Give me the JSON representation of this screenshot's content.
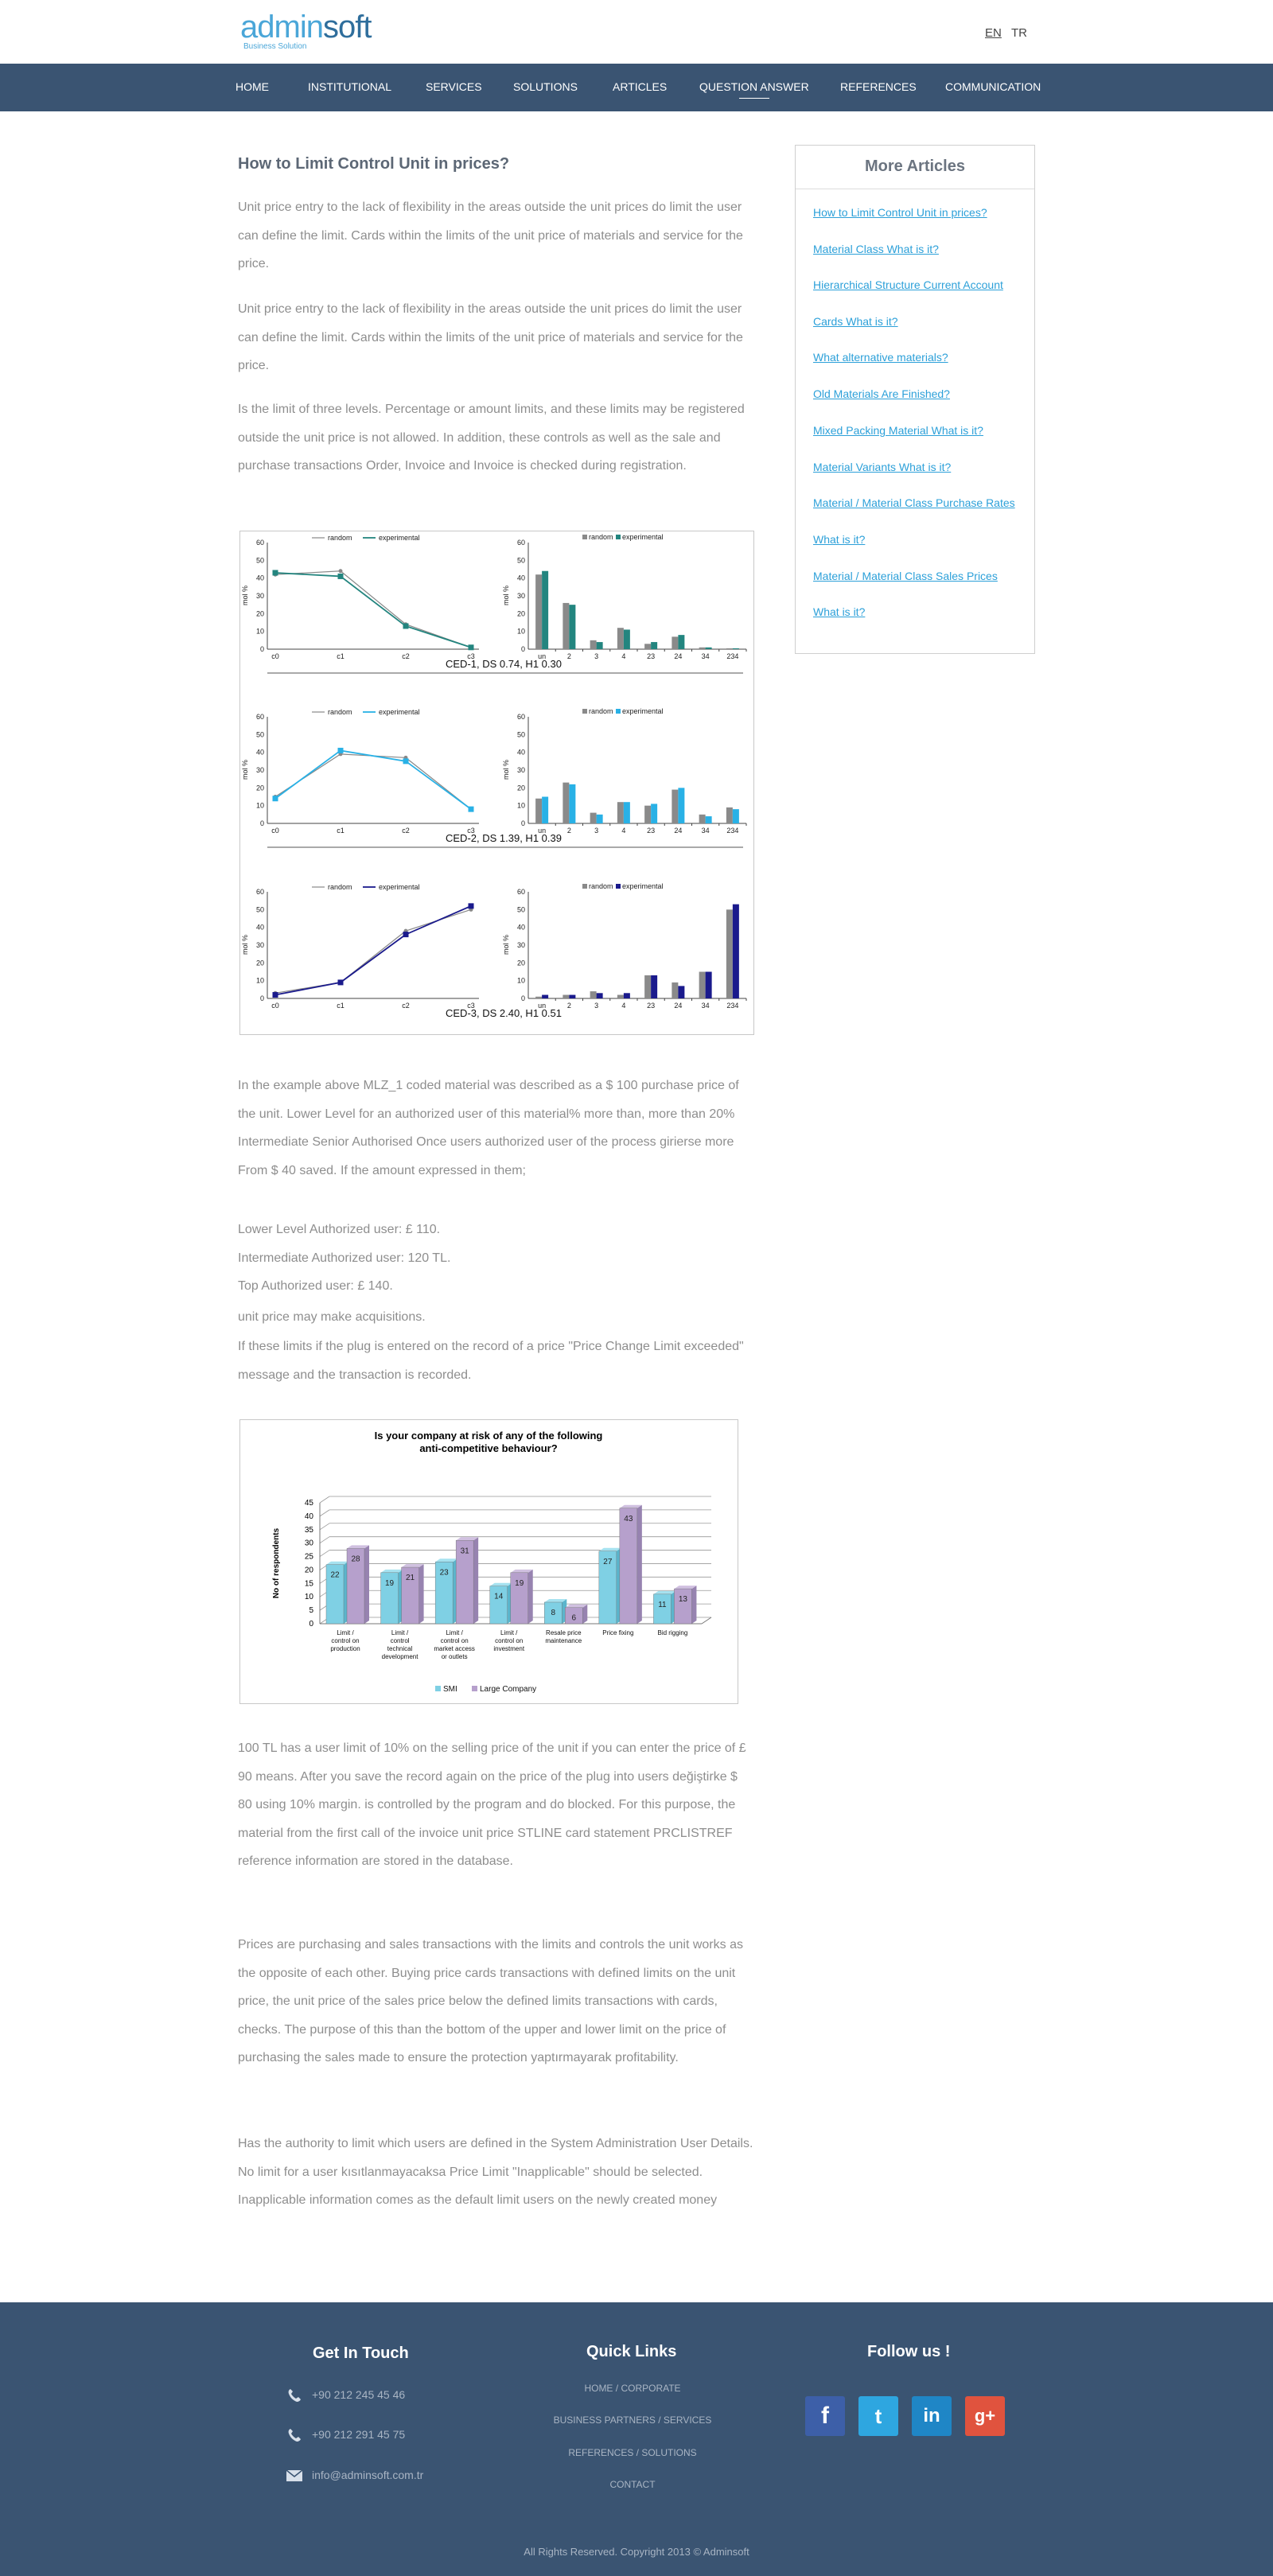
{
  "header": {
    "logo_part1": "admin",
    "logo_part2": "soft",
    "logo_tagline": "Business Solution",
    "lang_en": "EN",
    "lang_tr": "TR"
  },
  "nav": {
    "items": [
      "HOME",
      "INSTITUTIONAL",
      "SERVICES",
      "SOLUTIONS",
      "ARTICLES",
      "QUESTION ANSWER",
      "REFERENCES",
      "COMMUNICATION"
    ],
    "active": "QUESTION ANSWER"
  },
  "article": {
    "title": "How to Limit Control Unit in prices?",
    "p1": "Unit price entry to the lack of flexibility in the areas outside the unit prices do limit the user can define the limit. Cards within the limits of the unit price of materials and service for the price.",
    "p2": "Unit price entry to the lack of flexibility in the areas outside the unit prices do limit the user can define the limit. Cards within the limits of the unit price of materials and service for the price.",
    "p3": "Is the limit of three levels. Percentage or amount limits, and these limits may be registered outside the unit price is not allowed. In addition, these controls as well as the sale and purchase transactions Order, Invoice and Invoice is checked during registration.",
    "p4": "In the example above MLZ_1 coded material was described as a $ 100 purchase price of the unit. Lower Level for an authorized user of this material% more than, more than 20% Intermediate Senior Authorised Once users authorized user of the process girierse more From $ 40 saved. If the amount expressed in them;",
    "l1": "Lower Level Authorized user: £ 110.",
    "l2": "Intermediate Authorized user: 120 TL.",
    "l3": "Top Authorized user: £ 140.",
    "l4": "unit price may make acquisitions.",
    "p5": "If these limits if the plug is entered on the record of a price \"Price Change Limit exceeded\" message and the transaction is recorded.",
    "p6": "100 TL has a user limit of 10% on the selling price of the unit if you can enter the price of £ 90 means. After you save the record again on the price of the plug into users değiştirke $ 80 using 10% margin. is controlled by the program and do blocked. For this purpose, the material from the first call of the invoice unit price STLINE card statement PRCLISTREF reference information are stored in the database.",
    "p7": "Prices are purchasing and sales transactions with the limits and controls the unit works as the opposite of each other. Buying price cards transactions with defined limits on the unit price, the unit price of the sales price below the defined limits transactions with cards, checks. The purpose of this than the bottom of the upper and lower limit on the price of purchasing the sales made to ensure the protection yaptırmayarak profitability.",
    "p8": "Has the authority to limit which users are defined in the System Administration User Details. No limit for a user kısıtlanmayacaksa Price Limit \"Inapplicable\" should be selected. Inapplicable information comes as the default limit users on the newly created money"
  },
  "sidebar": {
    "title": "More Articles",
    "links": [
      "How to Limit Control Unit in prices?",
      "Material Class What is it?",
      "Hierarchical Structure Current Account",
      "Cards What is it?",
      "What alternative materials?",
      "Old Materials Are Finished?",
      "Mixed Packing Material What is it?",
      "Material Variants What is it?",
      "Material / Material Class Purchase Rates",
      "What is it?",
      "Material / Material Class Sales Prices",
      "What is it?"
    ]
  },
  "footer": {
    "get_in_touch": "Get In Touch",
    "phone1": "+90 212 245 45 46",
    "phone2": "+90 212 291 45 75",
    "email": "info@adminsoft.com.tr",
    "quick_links": "Quick Links",
    "ql1": "HOME  / CORPORATE",
    "ql2": "BUSINESS PARTNERS  / SERVICES",
    "ql3": "REFERENCES  / SOLUTIONS",
    "ql4": "CONTACT",
    "follow_us": "Follow us !",
    "copyright": "All Rights Reserved. Copyright 2013 © Adminsoft"
  },
  "social": [
    "f",
    "t",
    "in",
    "g+"
  ],
  "colors": {
    "nav": "#3a5472",
    "link": "#2ca0d9",
    "teal": "#23857f",
    "cyan": "#29b1e6",
    "navy": "#1a1a8c",
    "gray": "#8c8c8c",
    "bar_light": "#7fd0e4",
    "bar_purple": "#b6a0cc"
  },
  "chart_data": [
    {
      "type": "line",
      "panel": "CED-1 line",
      "categories": [
        "c0",
        "c1",
        "c2",
        "c3"
      ],
      "series": [
        {
          "name": "random",
          "values": [
            42,
            44,
            14,
            1
          ]
        },
        {
          "name": "experimental",
          "values": [
            43,
            41,
            13,
            1
          ]
        }
      ],
      "ylabel": "mol %",
      "ylim": [
        0,
        60
      ],
      "legend": [
        "random",
        "experimental"
      ]
    },
    {
      "type": "bar",
      "panel": "CED-1 bar",
      "categories": [
        "un",
        "2",
        "3",
        "4",
        "23",
        "24",
        "34",
        "234"
      ],
      "series": [
        {
          "name": "random",
          "values": [
            42,
            26,
            5,
            12,
            3,
            7,
            1,
            0.5
          ]
        },
        {
          "name": "experimental",
          "values": [
            44,
            25,
            4,
            11,
            4,
            8,
            1,
            0.5
          ]
        }
      ],
      "ylabel": "mol %",
      "ylim": [
        0,
        60
      ],
      "caption": "CED-1, DS 0.74, H1 0.30"
    },
    {
      "type": "line",
      "panel": "CED-2 line",
      "categories": [
        "c0",
        "c1",
        "c2",
        "c3"
      ],
      "series": [
        {
          "name": "random",
          "values": [
            15,
            39,
            37,
            8
          ]
        },
        {
          "name": "experimental",
          "values": [
            14,
            41,
            35,
            8
          ]
        }
      ],
      "ylabel": "mol %",
      "ylim": [
        0,
        60
      ]
    },
    {
      "type": "bar",
      "panel": "CED-2 bar",
      "categories": [
        "un",
        "2",
        "3",
        "4",
        "23",
        "24",
        "34",
        "234"
      ],
      "series": [
        {
          "name": "random",
          "values": [
            14,
            23,
            6,
            12,
            10,
            19,
            5,
            9
          ]
        },
        {
          "name": "experimental",
          "values": [
            15,
            22,
            5,
            12,
            11,
            20,
            4,
            8
          ]
        }
      ],
      "ylabel": "mol %",
      "ylim": [
        0,
        60
      ],
      "caption": "CED-2, DS 1.39, H1 0.39"
    },
    {
      "type": "line",
      "panel": "CED-3 line",
      "categories": [
        "c0",
        "c1",
        "c2",
        "c3"
      ],
      "series": [
        {
          "name": "random",
          "values": [
            3,
            9,
            38,
            50
          ]
        },
        {
          "name": "experimental",
          "values": [
            2,
            9,
            36,
            52
          ]
        }
      ],
      "ylabel": "mol %",
      "ylim": [
        0,
        60
      ]
    },
    {
      "type": "bar",
      "panel": "CED-3 bar",
      "categories": [
        "un",
        "2",
        "3",
        "4",
        "23",
        "24",
        "34",
        "234"
      ],
      "series": [
        {
          "name": "random",
          "values": [
            1,
            2,
            4,
            2,
            13,
            9,
            15,
            50
          ]
        },
        {
          "name": "experimental",
          "values": [
            2,
            2,
            3,
            3,
            13,
            7,
            15,
            53
          ]
        }
      ],
      "ylabel": "mol %",
      "ylim": [
        0,
        60
      ],
      "caption": "CED-3, DS 2.40, H1 0.51"
    },
    {
      "type": "bar",
      "panel": "survey",
      "title": "Is your company at risk of any of the following anti-competitive behaviour?",
      "categories": [
        "Limit / control on production",
        "Limit / control technical development",
        "Limit / control on market access or outlets",
        "Limit / control on investment",
        "Resale price maintenance",
        "Price fixing",
        "Bid rigging"
      ],
      "series": [
        {
          "name": "SMI",
          "values": [
            22,
            19,
            23,
            14,
            8,
            27,
            11
          ]
        },
        {
          "name": "Large Company",
          "values": [
            28,
            21,
            31,
            19,
            6,
            43,
            13
          ]
        }
      ],
      "ylabel": "No of respondents",
      "ylim": [
        0,
        45
      ],
      "yticks": [
        0,
        5,
        10,
        15,
        20,
        25,
        30,
        35,
        40,
        45
      ]
    }
  ]
}
